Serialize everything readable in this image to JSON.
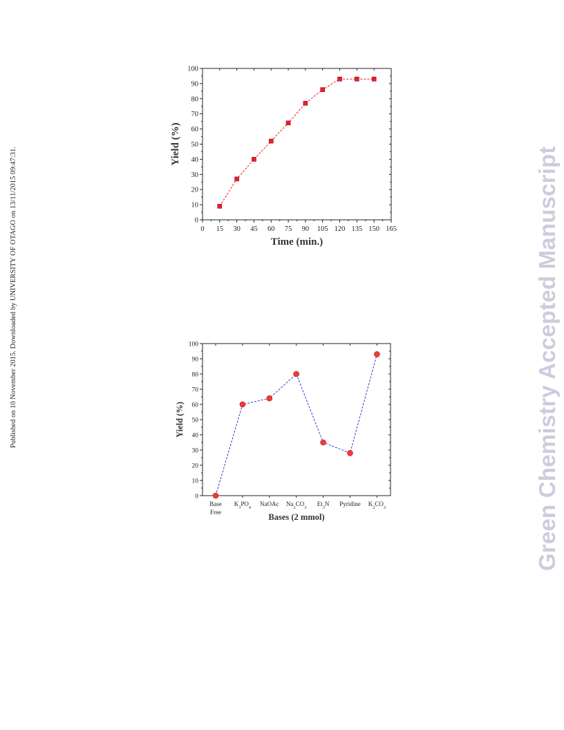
{
  "page": {
    "side_note": "Published on 10 November 2015. Downloaded by UNIVERSITY OF OTAGO on 13/11/2015 09:47:31.",
    "watermark": "Green Chemistry Accepted Manuscript"
  },
  "chart_data": [
    {
      "type": "line",
      "xlabel": "Time (min.)",
      "ylabel": "Yield (%)",
      "xlim": [
        0,
        165
      ],
      "ylim": [
        0,
        100
      ],
      "xticks": [
        "0",
        "15",
        "30",
        "45",
        "60",
        "75",
        "90",
        "105",
        "120",
        "135",
        "150",
        "165"
      ],
      "yticks": [
        "0",
        "10",
        "20",
        "30",
        "40",
        "50",
        "60",
        "70",
        "80",
        "90",
        "100"
      ],
      "series": [
        {
          "x": [
            15,
            30,
            45,
            60,
            75,
            90,
            105,
            120,
            135,
            150
          ],
          "values": [
            9,
            27,
            40,
            52,
            64,
            77,
            86,
            93,
            93,
            93
          ],
          "color": "#e8202a",
          "marker": "square"
        }
      ]
    },
    {
      "type": "line",
      "xlabel": "Bases (2 mmol)",
      "ylabel": "Yield (%)",
      "ylim": [
        0,
        100
      ],
      "yticks": [
        "0",
        "10",
        "20",
        "30",
        "40",
        "50",
        "60",
        "70",
        "80",
        "90",
        "100"
      ],
      "categories": [
        "Base Free",
        "K3PO4",
        "NaOAc",
        "Na2CO3",
        "Et3N",
        "Pyridine",
        "K2CO3"
      ],
      "category_labels": [
        {
          "lines": [
            "Base",
            "Free"
          ]
        },
        {
          "lines": [
            "K3PO4"
          ]
        },
        {
          "lines": [
            "NaOAc"
          ]
        },
        {
          "lines": [
            "Na2CO3"
          ]
        },
        {
          "lines": [
            "Et3N"
          ]
        },
        {
          "lines": [
            "Pyridine"
          ]
        },
        {
          "lines": [
            "K2CO3"
          ]
        }
      ],
      "series": [
        {
          "values": [
            0,
            60,
            64,
            80,
            35,
            28,
            93
          ],
          "color": "#2a3bd0",
          "marker_color": "#f03a3a",
          "marker": "circle"
        }
      ]
    }
  ]
}
